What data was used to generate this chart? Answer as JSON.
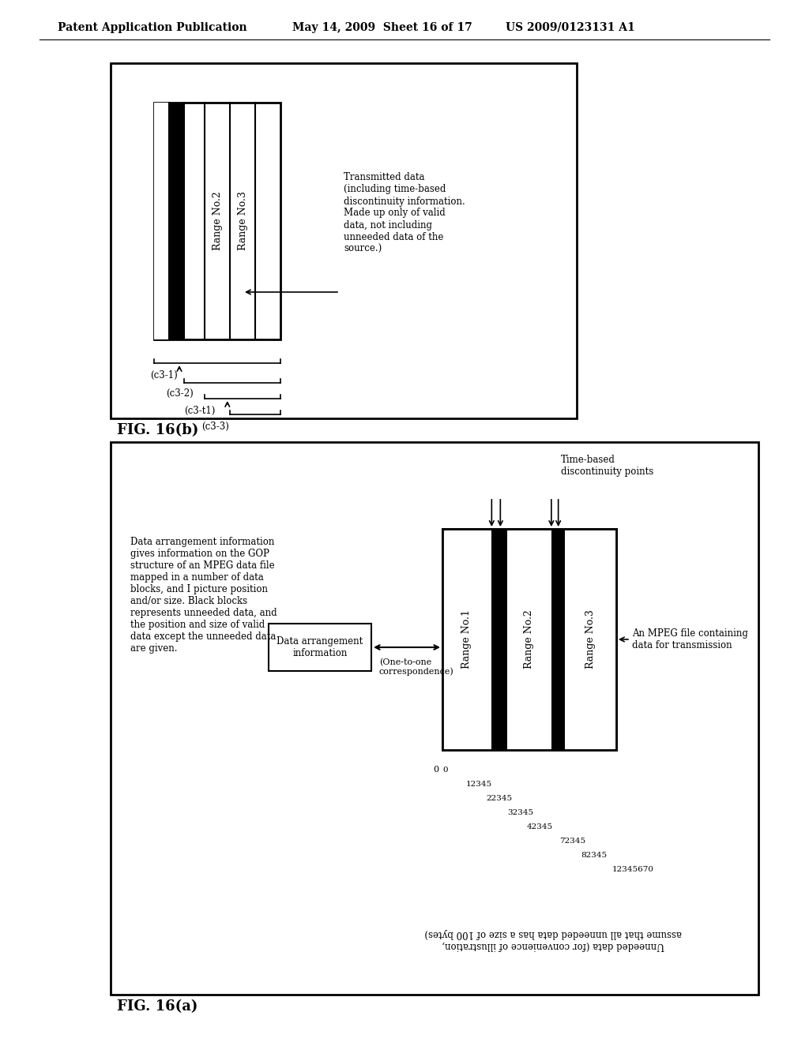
{
  "header_left": "Patent Application Publication",
  "header_mid": "May 14, 2009  Sheet 16 of 17",
  "header_right": "US 2009/0123131 A1",
  "fig_b_label": "FIG. 16(b)",
  "fig_a_label": "FIG. 16(a)",
  "bg_color": "#ffffff",
  "box_color": "#000000",
  "range_fill": "#ffffff",
  "black_fill": "#000000",
  "gray_fill": "#888888"
}
